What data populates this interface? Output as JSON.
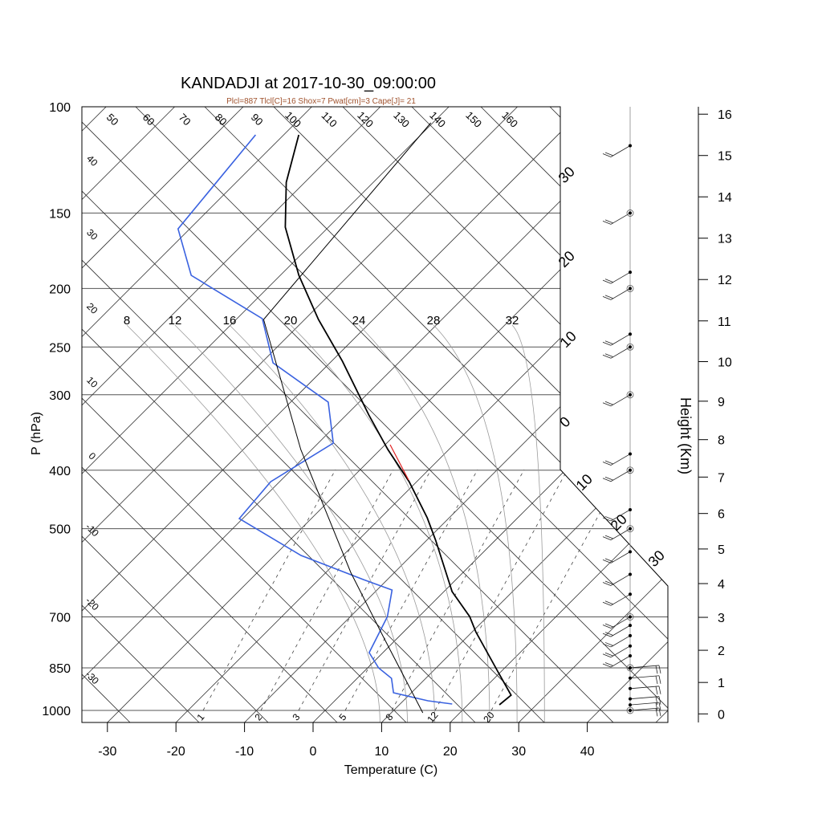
{
  "chart_data": {
    "type": "skewt",
    "title": "KANDADJI at 2017-10-30_09:00:00",
    "subtitle": "Plcl=887 Tlcl[C]=16 Shox=7 Pwat[cm]=3 Cape[J]= 21",
    "xlabel": "Temperature (C)",
    "ylabel": "P (hPa)",
    "y2label": "Height (Km)",
    "pressure_ticks": [
      "100",
      "150",
      "200",
      "250",
      "300",
      "400",
      "500",
      "700",
      "850",
      "1000"
    ],
    "temperature_ticks": [
      "-30",
      "-20",
      "-10",
      "0",
      "10",
      "20",
      "30",
      "40"
    ],
    "height_ticks": [
      "0",
      "1",
      "2",
      "3",
      "4",
      "5",
      "6",
      "7",
      "8",
      "9",
      "10",
      "11",
      "12",
      "13",
      "14",
      "15",
      "16"
    ],
    "dry_adiabat_top_labels": [
      "50",
      "60",
      "70",
      "80",
      "90",
      "100",
      "110",
      "120",
      "130",
      "140",
      "150",
      "160"
    ],
    "left_edge_labels": [
      "40",
      "30",
      "20",
      "10",
      "0",
      "-10",
      "-20",
      "-30"
    ],
    "right_edge_labels": [
      "30",
      "20",
      "10",
      "0",
      "10",
      "20",
      "30"
    ],
    "moist_adiabat_labels": [
      "8",
      "12",
      "16",
      "20",
      "24",
      "28",
      "32"
    ],
    "mixing_ratio_labels": [
      "1",
      "2",
      "3",
      "5",
      "8",
      "12",
      "20"
    ],
    "series": [
      {
        "name": "temperature",
        "color": "#000000",
        "points": [
          [
            111.3,
            -87.8
          ],
          [
            133.4,
            -82.7
          ],
          [
            158.3,
            -76.3
          ],
          [
            190.2,
            -67.3
          ],
          [
            225.1,
            -58.0
          ],
          [
            264.0,
            -48.4
          ],
          [
            324.1,
            -36.7
          ],
          [
            369.7,
            -28.9
          ],
          [
            417.9,
            -21.1
          ],
          [
            479.6,
            -13.2
          ],
          [
            522.5,
            -8.7
          ],
          [
            635.6,
            1.2
          ],
          [
            699.0,
            7.4
          ],
          [
            740.7,
            10.5
          ],
          [
            863.3,
            19.6
          ],
          [
            943.4,
            24.9
          ],
          [
            978.7,
            24.6
          ]
        ]
      },
      {
        "name": "dewpoint",
        "color": "#3a62e0",
        "points": [
          [
            111.3,
            -94.1
          ],
          [
            159.3,
            -91.7
          ],
          [
            190.2,
            -83.0
          ],
          [
            224.4,
            -66.3
          ],
          [
            265.6,
            -58.3
          ],
          [
            308.6,
            -44.5
          ],
          [
            360.7,
            -37.8
          ],
          [
            417.9,
            -41.3
          ],
          [
            481.0,
            -40.5
          ],
          [
            553.8,
            -26.1
          ],
          [
            607.0,
            -13.5
          ],
          [
            631.7,
            -7.8
          ],
          [
            699.0,
            -4.6
          ],
          [
            802.1,
            -2.0
          ],
          [
            850.2,
            1.6
          ],
          [
            884.6,
            5.0
          ],
          [
            934.9,
            7.4
          ],
          [
            964.0,
            13.6
          ],
          [
            975.8,
            17.6
          ]
        ]
      },
      {
        "name": "parcel",
        "color": "#000000",
        "points": [
          [
            1009,
            14.6
          ],
          [
            754.4,
            -2.3
          ],
          [
            590.6,
            -16.4
          ],
          [
            369.7,
            -41.6
          ],
          [
            225.1,
            -66.0
          ],
          [
            106.3,
            -70.3
          ]
        ]
      }
    ],
    "lcl_marker_color": "#e02020",
    "wind_levels_hpa": [
      116,
      150,
      188,
      200,
      238,
      250,
      300,
      376,
      400,
      465,
      500,
      546,
      595,
      642,
      700,
      723,
      752,
      782,
      812,
      850,
      884,
      920,
      957,
      979,
      1000
    ],
    "wind_circle_levels_hpa": [
      150,
      200,
      250,
      300,
      400,
      500,
      700,
      850,
      1000
    ],
    "subtitle_color": "#a0522d"
  }
}
